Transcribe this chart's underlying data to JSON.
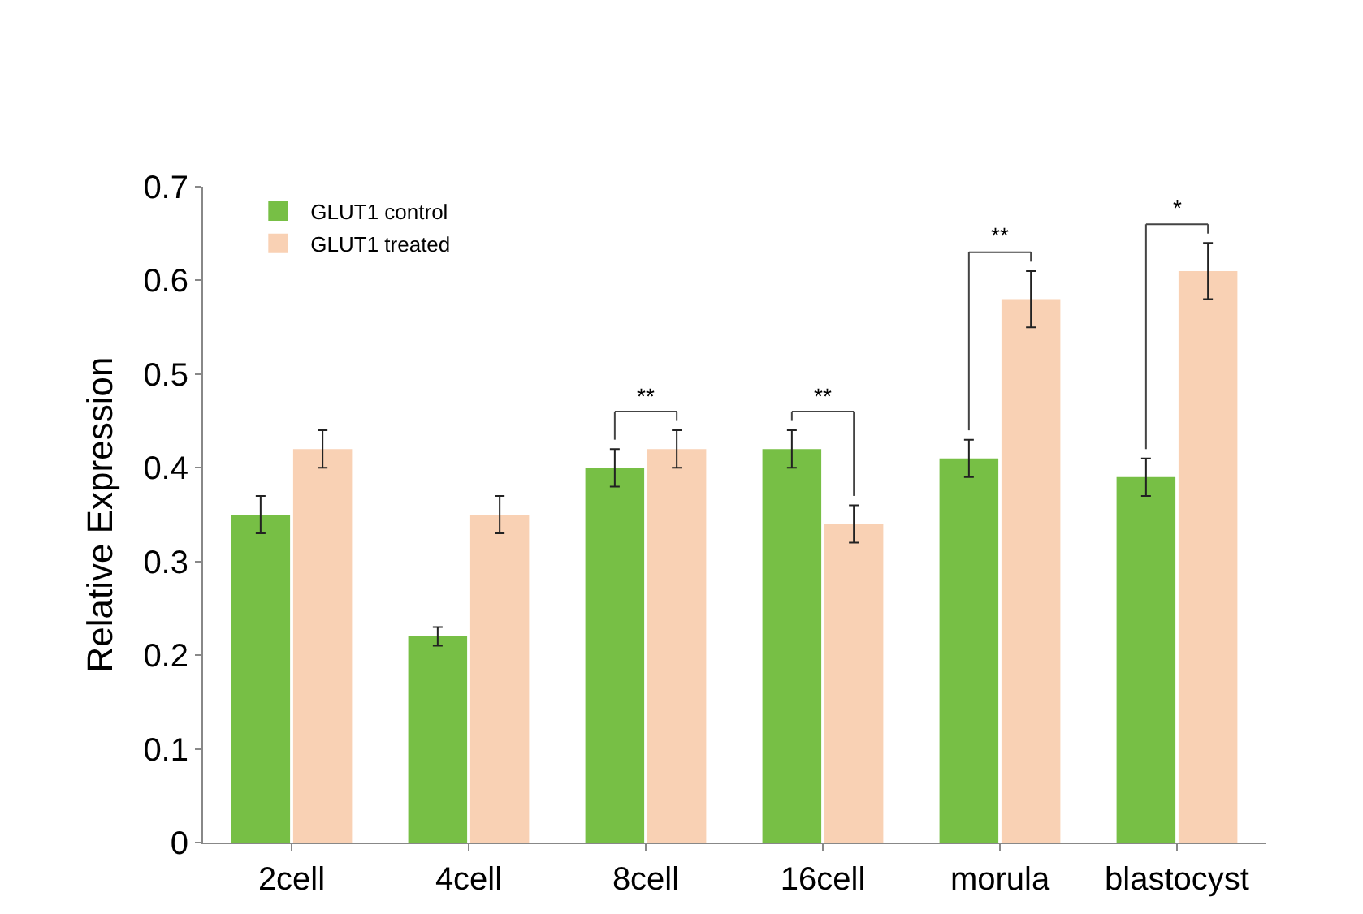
{
  "chart_data": {
    "type": "bar",
    "ylabel": "Relative Expression",
    "categories": [
      "2cell",
      "4cell",
      "8cell",
      "16cell",
      "morula",
      "blastocyst"
    ],
    "series": [
      {
        "name": "GLUT1 control",
        "color": "#77bf45",
        "values": [
          0.35,
          0.22,
          0.4,
          0.42,
          0.41,
          0.39
        ],
        "errors": [
          0.02,
          0.01,
          0.02,
          0.02,
          0.02,
          0.02
        ]
      },
      {
        "name": "GLUT1 treated",
        "color": "#f9d1b4",
        "values": [
          0.42,
          0.35,
          0.42,
          0.34,
          0.58,
          0.61
        ],
        "errors": [
          0.02,
          0.02,
          0.02,
          0.02,
          0.03,
          0.03
        ]
      }
    ],
    "ylim": [
      0,
      0.7
    ],
    "yticks": [
      0,
      0.1,
      0.2,
      0.3,
      0.4,
      0.5,
      0.6,
      0.7
    ],
    "grid": false,
    "legend": "top left",
    "annotations": [
      "**",
      "**",
      "**",
      "*"
    ]
  }
}
